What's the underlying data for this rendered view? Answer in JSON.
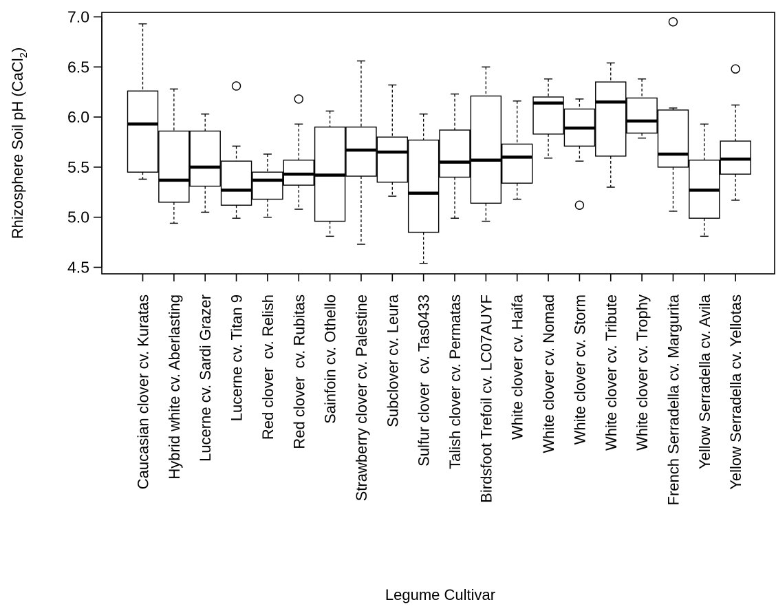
{
  "chart_data": {
    "type": "box",
    "xlabel": "Legume Cultivar",
    "ylabel_main": "Rhizosphere Soil pH (CaCl",
    "ylabel_sub": "2",
    "ylabel_close": ")",
    "ylim": [
      4.5,
      7.0
    ],
    "yticks": [
      {
        "value": 4.5,
        "label": "4.5"
      },
      {
        "value": 5.0,
        "label": "5.0"
      },
      {
        "value": 5.5,
        "label": "5.5"
      },
      {
        "value": 6.0,
        "label": "6.0"
      },
      {
        "value": 6.5,
        "label": "6.5"
      },
      {
        "value": 7.0,
        "label": "7.0"
      }
    ],
    "boxes": [
      {
        "label": "Caucasian clover cv. Kuratas",
        "min": 5.38,
        "q1": 5.45,
        "median": 5.93,
        "q3": 6.26,
        "max": 6.93,
        "outliers": []
      },
      {
        "label": "Hybrid white cv. Aberlasting",
        "min": 4.94,
        "q1": 5.15,
        "median": 5.37,
        "q3": 5.86,
        "max": 6.28,
        "outliers": []
      },
      {
        "label": "Lucerne cv. Sardi Grazer",
        "min": 5.05,
        "q1": 5.31,
        "median": 5.5,
        "q3": 5.86,
        "max": 6.03,
        "outliers": []
      },
      {
        "label": "Lucerne cv. Titan 9",
        "min": 4.99,
        "q1": 5.12,
        "median": 5.27,
        "q3": 5.56,
        "max": 5.71,
        "outliers": [
          6.31
        ]
      },
      {
        "label": "Red clover  cv. Relish",
        "min": 5.0,
        "q1": 5.18,
        "median": 5.37,
        "q3": 5.45,
        "max": 5.63,
        "outliers": []
      },
      {
        "label": "Red clover  cv. Rubitas",
        "min": 5.08,
        "q1": 5.32,
        "median": 5.43,
        "q3": 5.57,
        "max": 5.93,
        "outliers": [
          6.18
        ]
      },
      {
        "label": "Sainfoin cv. Othello",
        "min": 4.81,
        "q1": 4.96,
        "median": 5.42,
        "q3": 5.9,
        "max": 6.06,
        "outliers": []
      },
      {
        "label": "Strawberry clover cv. Palestine",
        "min": 4.73,
        "q1": 5.41,
        "median": 5.67,
        "q3": 5.9,
        "max": 6.56,
        "outliers": []
      },
      {
        "label": "Subclover cv. Leura",
        "min": 5.21,
        "q1": 5.35,
        "median": 5.65,
        "q3": 5.8,
        "max": 6.32,
        "outliers": []
      },
      {
        "label": "Sulfur clover  cv. Tas0433",
        "min": 4.54,
        "q1": 4.85,
        "median": 5.24,
        "q3": 5.77,
        "max": 6.03,
        "outliers": []
      },
      {
        "label": "Talish clover cv. Permatas",
        "min": 4.99,
        "q1": 5.4,
        "median": 5.55,
        "q3": 5.87,
        "max": 6.23,
        "outliers": []
      },
      {
        "label": "Birdsfoot Trefoil cv. LC07AUYF",
        "min": 4.96,
        "q1": 5.14,
        "median": 5.57,
        "q3": 6.21,
        "max": 6.5,
        "outliers": []
      },
      {
        "label": "White clover cv. Haifa",
        "min": 5.18,
        "q1": 5.34,
        "median": 5.6,
        "q3": 5.73,
        "max": 6.16,
        "outliers": []
      },
      {
        "label": "White clover cv. Nomad",
        "min": 5.59,
        "q1": 5.83,
        "median": 6.14,
        "q3": 6.2,
        "max": 6.38,
        "outliers": []
      },
      {
        "label": "White clover cv. Storm",
        "min": 5.56,
        "q1": 5.71,
        "median": 5.89,
        "q3": 6.08,
        "max": 6.18,
        "outliers": [
          5.12
        ]
      },
      {
        "label": "White clover cv. Tribute",
        "min": 5.3,
        "q1": 5.61,
        "median": 6.15,
        "q3": 6.35,
        "max": 6.54,
        "outliers": []
      },
      {
        "label": "White clover cv. Trophy",
        "min": 5.79,
        "q1": 5.84,
        "median": 5.96,
        "q3": 6.19,
        "max": 6.38,
        "outliers": []
      },
      {
        "label": "French Serradella cv. Margurita",
        "min": 5.06,
        "q1": 5.5,
        "median": 5.63,
        "q3": 6.07,
        "max": 6.09,
        "outliers": [
          6.95
        ]
      },
      {
        "label": "Yellow Serradella cv. Avila",
        "min": 4.81,
        "q1": 4.99,
        "median": 5.27,
        "q3": 5.57,
        "max": 5.93,
        "outliers": []
      },
      {
        "label": "Yellow Serradella cv. Yellotas",
        "min": 5.17,
        "q1": 5.43,
        "median": 5.58,
        "q3": 5.76,
        "max": 6.12,
        "outliers": [
          6.48
        ]
      }
    ]
  }
}
